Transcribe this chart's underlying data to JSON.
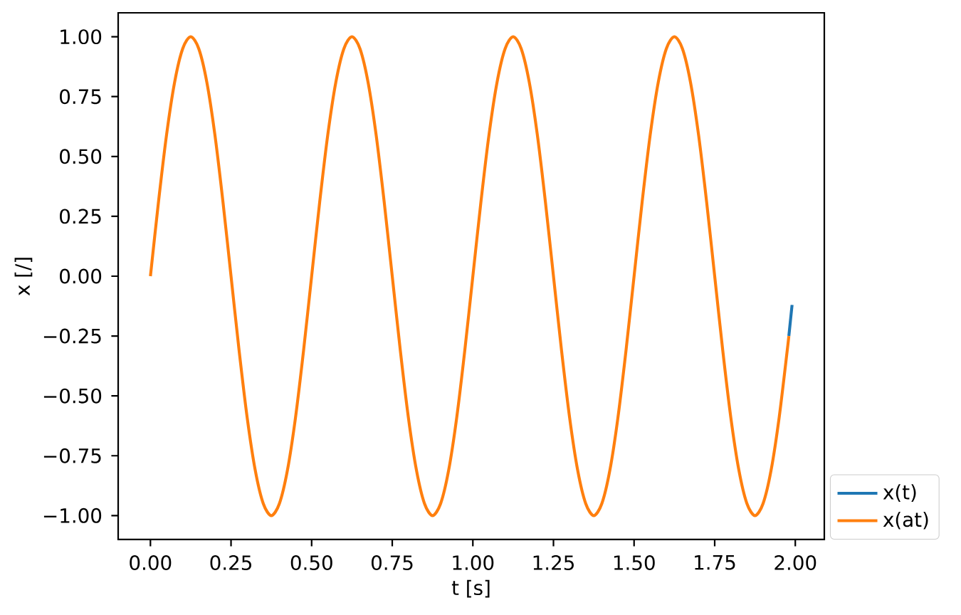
{
  "chart_data": {
    "type": "line",
    "xlabel": "t [s]",
    "ylabel": "x [/]",
    "xlim": [
      -0.1,
      2.09
    ],
    "ylim": [
      -1.1,
      1.1
    ],
    "xticks": [
      {
        "value": 0,
        "label": "0.00"
      },
      {
        "value": 0.25,
        "label": "0.25"
      },
      {
        "value": 0.5,
        "label": "0.50"
      },
      {
        "value": 0.75,
        "label": "0.75"
      },
      {
        "value": 1,
        "label": "1.00"
      },
      {
        "value": 1.25,
        "label": "1.25"
      },
      {
        "value": 1.5,
        "label": "1.50"
      },
      {
        "value": 1.75,
        "label": "1.75"
      },
      {
        "value": 2,
        "label": "2.00"
      }
    ],
    "yticks": [
      {
        "value": -1,
        "label": "−1.00"
      },
      {
        "value": -0.75,
        "label": "−0.75"
      },
      {
        "value": -0.5,
        "label": "−0.50"
      },
      {
        "value": -0.25,
        "label": "−0.25"
      },
      {
        "value": 0,
        "label": "0.00"
      },
      {
        "value": 0.25,
        "label": "0.25"
      },
      {
        "value": 0.5,
        "label": "0.50"
      },
      {
        "value": 0.75,
        "label": "0.75"
      },
      {
        "value": 1,
        "label": "1.00"
      }
    ],
    "legend": "bottom right",
    "line_style": "solid",
    "series": [
      {
        "name": "x(t)",
        "color": "#1f77b4",
        "x": [
          1.98,
          1.99
        ],
        "values": [
          -0.25,
          -0.12
        ]
      },
      {
        "name": "x(at)",
        "color": "#ff7f0e",
        "x": [
          0,
          0.025,
          0.05,
          0.075,
          0.1,
          0.125,
          0.15,
          0.175,
          0.2,
          0.225,
          0.25,
          0.275,
          0.3,
          0.325,
          0.35,
          0.375,
          0.4,
          0.425,
          0.45,
          0.475,
          0.5,
          0.525,
          0.55,
          0.575,
          0.6,
          0.625,
          0.65,
          0.675,
          0.7,
          0.725,
          0.75,
          0.775,
          0.8,
          0.825,
          0.85,
          0.875,
          0.9,
          0.925,
          0.95,
          0.975,
          1,
          1.025,
          1.05,
          1.075,
          1.1,
          1.125,
          1.15,
          1.175,
          1.2,
          1.225,
          1.25,
          1.275,
          1.3,
          1.325,
          1.35,
          1.375,
          1.4,
          1.425,
          1.45,
          1.475,
          1.5,
          1.525,
          1.55,
          1.575,
          1.6,
          1.625,
          1.65,
          1.675,
          1.7,
          1.725,
          1.75,
          1.775,
          1.8,
          1.825,
          1.85,
          1.875,
          1.9,
          1.925,
          1.95,
          1.975,
          1.98
        ],
        "values": [
          0,
          0.31,
          0.59,
          0.81,
          0.95,
          1,
          0.95,
          0.81,
          0.59,
          0.31,
          0,
          -0.31,
          -0.59,
          -0.81,
          -0.95,
          -1,
          -0.95,
          -0.81,
          -0.59,
          -0.31,
          0,
          0.31,
          0.59,
          0.81,
          0.95,
          1,
          0.95,
          0.81,
          0.59,
          0.31,
          0,
          -0.31,
          -0.59,
          -0.81,
          -0.95,
          -1,
          -0.95,
          -0.81,
          -0.59,
          -0.31,
          0,
          0.31,
          0.59,
          0.81,
          0.95,
          1,
          0.95,
          0.81,
          0.59,
          0.31,
          0,
          -0.31,
          -0.59,
          -0.81,
          -0.95,
          -1,
          -0.95,
          -0.81,
          -0.59,
          -0.31,
          0,
          0.31,
          0.59,
          0.81,
          0.95,
          1,
          0.95,
          0.81,
          0.59,
          0.31,
          0,
          -0.31,
          -0.59,
          -0.81,
          -0.95,
          -1,
          -0.95,
          -0.81,
          -0.59,
          -0.31,
          -0.25
        ]
      }
    ]
  }
}
